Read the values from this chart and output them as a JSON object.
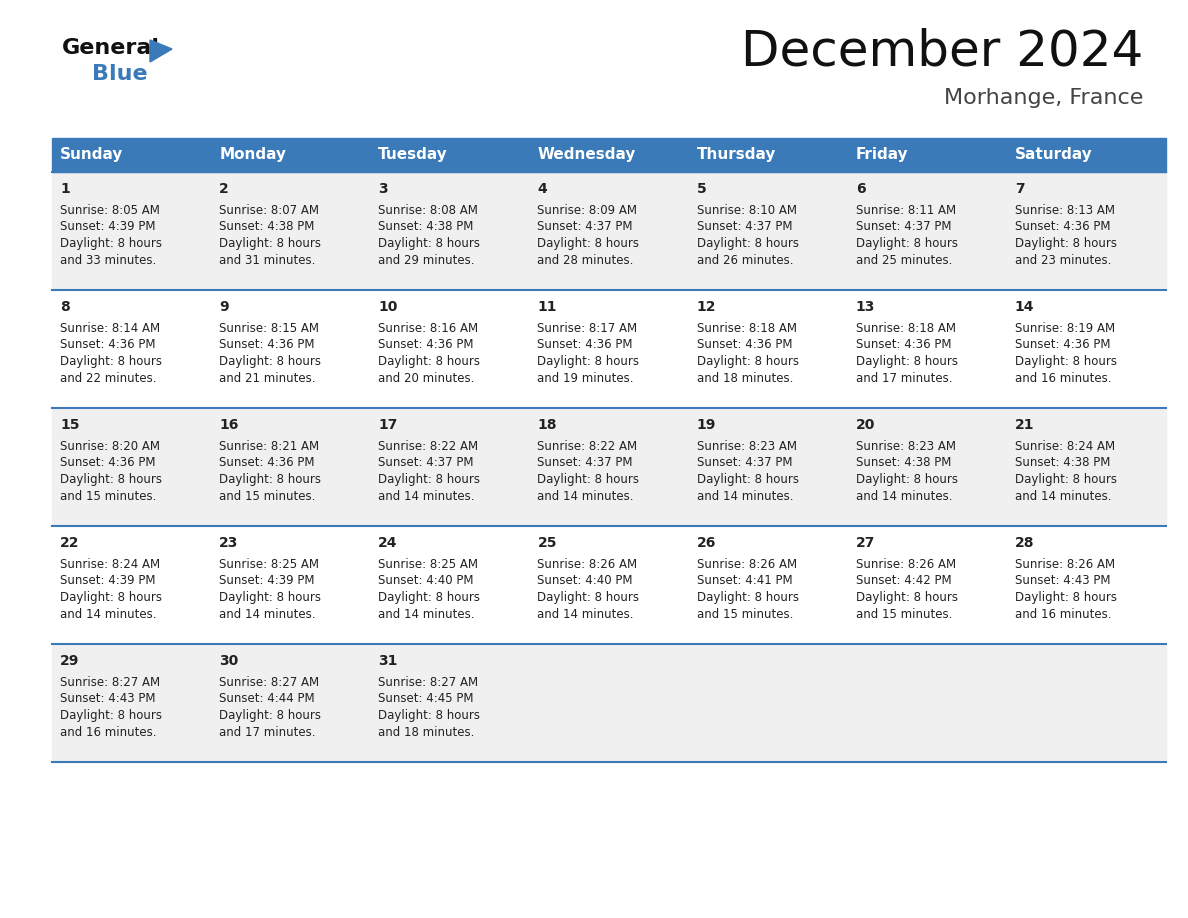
{
  "title": "December 2024",
  "subtitle": "Morhange, France",
  "header_bg": "#3a7ab8",
  "header_text": "#ffffff",
  "odd_row_bg": "#f0f0f0",
  "even_row_bg": "#ffffff",
  "border_color": "#3a7ab8",
  "days_of_week": [
    "Sunday",
    "Monday",
    "Tuesday",
    "Wednesday",
    "Thursday",
    "Friday",
    "Saturday"
  ],
  "calendar_data": [
    [
      {
        "day": 1,
        "sunrise": "8:05 AM",
        "sunset": "4:39 PM",
        "daylight": "8 hours and 33 minutes."
      },
      {
        "day": 2,
        "sunrise": "8:07 AM",
        "sunset": "4:38 PM",
        "daylight": "8 hours and 31 minutes."
      },
      {
        "day": 3,
        "sunrise": "8:08 AM",
        "sunset": "4:38 PM",
        "daylight": "8 hours and 29 minutes."
      },
      {
        "day": 4,
        "sunrise": "8:09 AM",
        "sunset": "4:37 PM",
        "daylight": "8 hours and 28 minutes."
      },
      {
        "day": 5,
        "sunrise": "8:10 AM",
        "sunset": "4:37 PM",
        "daylight": "8 hours and 26 minutes."
      },
      {
        "day": 6,
        "sunrise": "8:11 AM",
        "sunset": "4:37 PM",
        "daylight": "8 hours and 25 minutes."
      },
      {
        "day": 7,
        "sunrise": "8:13 AM",
        "sunset": "4:36 PM",
        "daylight": "8 hours and 23 minutes."
      }
    ],
    [
      {
        "day": 8,
        "sunrise": "8:14 AM",
        "sunset": "4:36 PM",
        "daylight": "8 hours and 22 minutes."
      },
      {
        "day": 9,
        "sunrise": "8:15 AM",
        "sunset": "4:36 PM",
        "daylight": "8 hours and 21 minutes."
      },
      {
        "day": 10,
        "sunrise": "8:16 AM",
        "sunset": "4:36 PM",
        "daylight": "8 hours and 20 minutes."
      },
      {
        "day": 11,
        "sunrise": "8:17 AM",
        "sunset": "4:36 PM",
        "daylight": "8 hours and 19 minutes."
      },
      {
        "day": 12,
        "sunrise": "8:18 AM",
        "sunset": "4:36 PM",
        "daylight": "8 hours and 18 minutes."
      },
      {
        "day": 13,
        "sunrise": "8:18 AM",
        "sunset": "4:36 PM",
        "daylight": "8 hours and 17 minutes."
      },
      {
        "day": 14,
        "sunrise": "8:19 AM",
        "sunset": "4:36 PM",
        "daylight": "8 hours and 16 minutes."
      }
    ],
    [
      {
        "day": 15,
        "sunrise": "8:20 AM",
        "sunset": "4:36 PM",
        "daylight": "8 hours and 15 minutes."
      },
      {
        "day": 16,
        "sunrise": "8:21 AM",
        "sunset": "4:36 PM",
        "daylight": "8 hours and 15 minutes."
      },
      {
        "day": 17,
        "sunrise": "8:22 AM",
        "sunset": "4:37 PM",
        "daylight": "8 hours and 14 minutes."
      },
      {
        "day": 18,
        "sunrise": "8:22 AM",
        "sunset": "4:37 PM",
        "daylight": "8 hours and 14 minutes."
      },
      {
        "day": 19,
        "sunrise": "8:23 AM",
        "sunset": "4:37 PM",
        "daylight": "8 hours and 14 minutes."
      },
      {
        "day": 20,
        "sunrise": "8:23 AM",
        "sunset": "4:38 PM",
        "daylight": "8 hours and 14 minutes."
      },
      {
        "day": 21,
        "sunrise": "8:24 AM",
        "sunset": "4:38 PM",
        "daylight": "8 hours and 14 minutes."
      }
    ],
    [
      {
        "day": 22,
        "sunrise": "8:24 AM",
        "sunset": "4:39 PM",
        "daylight": "8 hours and 14 minutes."
      },
      {
        "day": 23,
        "sunrise": "8:25 AM",
        "sunset": "4:39 PM",
        "daylight": "8 hours and 14 minutes."
      },
      {
        "day": 24,
        "sunrise": "8:25 AM",
        "sunset": "4:40 PM",
        "daylight": "8 hours and 14 minutes."
      },
      {
        "day": 25,
        "sunrise": "8:26 AM",
        "sunset": "4:40 PM",
        "daylight": "8 hours and 14 minutes."
      },
      {
        "day": 26,
        "sunrise": "8:26 AM",
        "sunset": "4:41 PM",
        "daylight": "8 hours and 15 minutes."
      },
      {
        "day": 27,
        "sunrise": "8:26 AM",
        "sunset": "4:42 PM",
        "daylight": "8 hours and 15 minutes."
      },
      {
        "day": 28,
        "sunrise": "8:26 AM",
        "sunset": "4:43 PM",
        "daylight": "8 hours and 16 minutes."
      }
    ],
    [
      {
        "day": 29,
        "sunrise": "8:27 AM",
        "sunset": "4:43 PM",
        "daylight": "8 hours and 16 minutes."
      },
      {
        "day": 30,
        "sunrise": "8:27 AM",
        "sunset": "4:44 PM",
        "daylight": "8 hours and 17 minutes."
      },
      {
        "day": 31,
        "sunrise": "8:27 AM",
        "sunset": "4:45 PM",
        "daylight": "8 hours and 18 minutes."
      },
      null,
      null,
      null,
      null
    ]
  ],
  "logo_text_general": "General",
  "logo_text_blue": "Blue",
  "logo_triangle_color": "#3a7ab8",
  "title_fontsize": 36,
  "subtitle_fontsize": 16,
  "header_fontsize": 11,
  "day_num_fontsize": 10,
  "cell_text_fontsize": 8.5
}
